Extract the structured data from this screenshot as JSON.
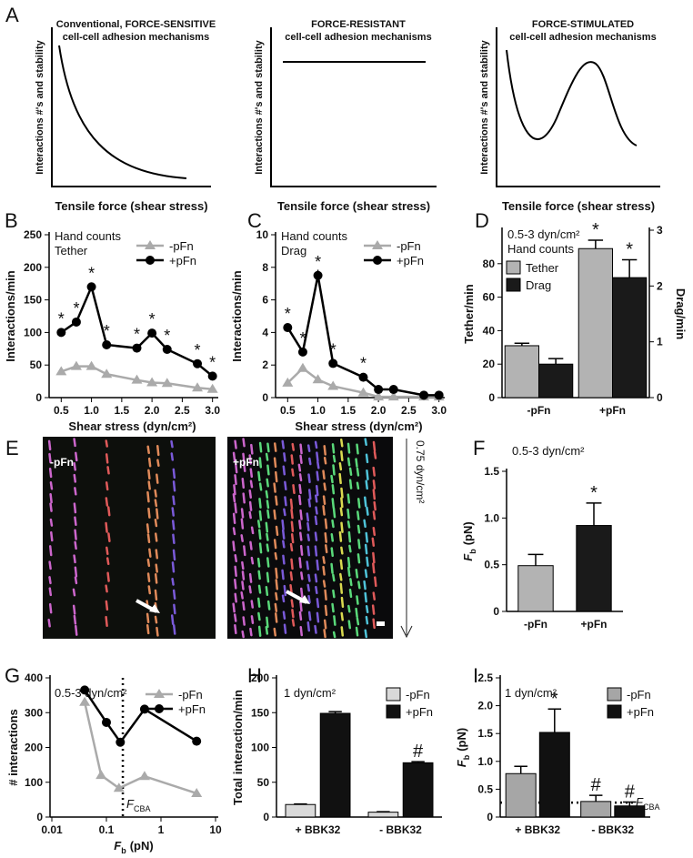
{
  "panel_labels": {
    "A": "A",
    "E": "E"
  },
  "schematics": {
    "ylabel": "Interactions #'s and stability",
    "xlabel": "Tensile force (shear stress)",
    "items": [
      {
        "title": [
          "Conventional, FORCE-SENSITIVE",
          "cell-cell adhesion mechanisms"
        ]
      },
      {
        "title": [
          "FORCE-RESISTANT",
          "cell-cell adhesion mechanisms"
        ]
      },
      {
        "title": [
          "FORCE-STIMULATED",
          "cell-cell adhesion mechanisms"
        ]
      }
    ]
  },
  "image_panel": {
    "labels": [
      "-pFn",
      "+pFn"
    ],
    "flow_label": "0.75 dyn/cm²"
  },
  "chart_data": [
    {
      "panel": "B",
      "type": "line",
      "notes": [
        "Hand counts",
        "Tether"
      ],
      "ylabel": "Interactions/min",
      "xlabel": "Shear stress (dyn/cm²)",
      "x": [
        0.5,
        0.75,
        1,
        1.25,
        1.75,
        2,
        2.25,
        2.75,
        3
      ],
      "xlim": [
        0.3,
        3.05
      ],
      "xticks": [
        0.5,
        {
          "value": 1,
          "label": "1.0"
        },
        1.5,
        {
          "value": 2,
          "label": "2.0"
        },
        2.5,
        {
          "value": 3,
          "label": "3.0"
        }
      ],
      "ylim": [
        0,
        250
      ],
      "yticks": [
        0,
        50,
        100,
        150,
        200,
        250
      ],
      "series": [
        {
          "name": "-pFn",
          "color": "#aaaaaa",
          "marker": "triangle",
          "values": [
            40,
            48,
            48,
            36,
            27,
            23,
            22,
            15,
            13
          ]
        },
        {
          "name": "+pFn",
          "color": "#000000",
          "marker": "circle",
          "values": [
            100,
            116,
            170,
            81,
            76,
            99,
            74,
            52,
            33
          ],
          "annotations": [
            "*",
            "*",
            "*",
            "*",
            "*",
            "*",
            "*",
            "*",
            "*"
          ]
        }
      ]
    },
    {
      "panel": "C",
      "type": "line",
      "notes": [
        "Hand counts",
        "Drag"
      ],
      "ylabel": "Interactions/min",
      "xlabel": "Shear stress (dyn/cm²)",
      "x": [
        0.5,
        0.75,
        1,
        1.25,
        1.75,
        2,
        2.25,
        2.75,
        3
      ],
      "xlim": [
        0.3,
        3.05
      ],
      "xticks": [
        0.5,
        {
          "value": 1,
          "label": "1.0"
        },
        1.5,
        {
          "value": 2,
          "label": "2.0"
        },
        2.5,
        {
          "value": 3,
          "label": "3.0"
        }
      ],
      "ylim": [
        0,
        10
      ],
      "yticks": [
        0,
        2,
        4,
        6,
        8,
        10
      ],
      "series": [
        {
          "name": "-pFn",
          "color": "#aaaaaa",
          "marker": "triangle",
          "values": [
            0.9,
            1.8,
            1.1,
            0.7,
            0.3,
            0.05,
            0.05,
            0.05,
            0.05
          ]
        },
        {
          "name": "+pFn",
          "color": "#000000",
          "marker": "circle",
          "values": [
            4.3,
            2.8,
            7.5,
            2.1,
            1.25,
            0.5,
            0.5,
            0.15,
            0.15
          ],
          "errors": [
            0.15,
            null,
            0.35,
            null,
            null,
            null,
            null,
            null,
            null
          ],
          "annotations": [
            "*",
            "*",
            "*",
            "*",
            "*",
            null,
            null,
            null,
            null
          ]
        }
      ]
    },
    {
      "panel": "D",
      "type": "bar",
      "notes": [
        "0.5-3 dyn/cm²",
        "Hand counts"
      ],
      "ylabel": "Tether/min",
      "y2label": "Drag/min",
      "categories": [
        "-pFn",
        "+pFn"
      ],
      "ylim": [
        0,
        100
      ],
      "yticks": [
        0,
        20,
        40,
        60,
        80
      ],
      "y2lim": [
        0,
        3
      ],
      "y2ticks": [
        0,
        1,
        2,
        3
      ],
      "series": [
        {
          "name": "Tether",
          "color": "#b3b3b3",
          "values": [
            31,
            89
          ],
          "errors": [
            1.5,
            5
          ],
          "annotations": [
            null,
            "*"
          ]
        },
        {
          "name": "Drag",
          "color": "#1a1a1a",
          "axis": "y2",
          "values": [
            0.6,
            2.15
          ],
          "errors": [
            0.1,
            0.32
          ],
          "annotations": [
            null,
            "*"
          ]
        }
      ]
    },
    {
      "panel": "F",
      "type": "bar",
      "notes": [
        "0.5-3 dyn/cm²"
      ],
      "ylabel": {
        "symbol": "F",
        "sub": "b",
        "unit": "(pN)"
      },
      "categories": [
        "-pFn",
        "+pFn"
      ],
      "values": [
        0.49,
        0.92
      ],
      "errors": [
        0.12,
        0.24
      ],
      "annotations": [
        null,
        "*"
      ],
      "colors": [
        "#b3b3b3",
        "#1a1a1a"
      ],
      "ylim": [
        0,
        1.5
      ],
      "yticks": [
        0,
        0.5,
        {
          "value": 1,
          "label": "1.0"
        },
        1.5
      ]
    },
    {
      "panel": "G",
      "type": "line",
      "log_x": true,
      "notes": [
        "0.5-3 dyn/cm²"
      ],
      "ylabel": "# interactions",
      "xlabel": {
        "symbol": "F",
        "sub": "b",
        "unit": "(pN)"
      },
      "xlim": [
        0.01,
        10
      ],
      "xticks": [
        0.01,
        0.1,
        1,
        10
      ],
      "ylim": [
        0,
        400
      ],
      "yticks": [
        0,
        100,
        200,
        300,
        400
      ],
      "series": [
        {
          "name": "-pFn",
          "color": "#aaaaaa",
          "marker": "triangle",
          "x": [
            0.04,
            0.08,
            0.17,
            0.5,
            4.5
          ],
          "values": [
            330,
            120,
            83,
            117,
            68
          ]
        },
        {
          "name": "+pFn",
          "color": "#000000",
          "marker": "circle",
          "x": [
            0.04,
            0.1,
            0.18,
            0.5,
            4.5
          ],
          "values": [
            365,
            272,
            215,
            310,
            218
          ]
        }
      ],
      "ref_line": {
        "orientation": "vertical",
        "value": 0.2,
        "label": {
          "symbol": "F",
          "sub": "CBA"
        }
      }
    },
    {
      "panel": "H",
      "type": "bar",
      "notes": [
        "1 dyn/cm²"
      ],
      "ylabel": "Total interaction/min",
      "categories": [
        "+ BBK32",
        "- BBK32"
      ],
      "ylim": [
        0,
        200
      ],
      "yticks": [
        0,
        50,
        100,
        150,
        200
      ],
      "series": [
        {
          "name": "-pFn",
          "color": "#d9d9d9",
          "values": [
            18,
            7
          ],
          "errors": [
            0.8,
            0.6
          ]
        },
        {
          "name": "+pFn",
          "color": "#111111",
          "values": [
            149,
            78
          ],
          "errors": [
            2.5,
            1.5
          ],
          "annotations": [
            null,
            "#"
          ]
        }
      ]
    },
    {
      "panel": "I",
      "type": "bar",
      "notes": [
        "1 dyn/cm²"
      ],
      "ylabel": {
        "symbol": "F",
        "sub": "b",
        "unit": "(pN)"
      },
      "categories": [
        "+ BBK32",
        "- BBK32"
      ],
      "ylim": [
        0,
        2.5
      ],
      "yticks": [
        0,
        0.5,
        {
          "value": 1,
          "label": "1.0"
        },
        1.5,
        {
          "value": 2,
          "label": "2.0"
        },
        2.5
      ],
      "series": [
        {
          "name": "-pFn",
          "color": "#a6a6a6",
          "values": [
            0.78,
            0.28
          ],
          "errors": [
            0.13,
            0.11
          ],
          "annotations": [
            null,
            "#"
          ]
        },
        {
          "name": "+pFn",
          "color": "#111111",
          "values": [
            1.52,
            0.2
          ],
          "errors": [
            0.42,
            0.07
          ],
          "annotations": [
            "*",
            "#"
          ]
        }
      ],
      "ref_line": {
        "orientation": "horizontal",
        "value": 0.26,
        "label": {
          "symbol": "F",
          "sub": "CBA"
        }
      }
    }
  ]
}
